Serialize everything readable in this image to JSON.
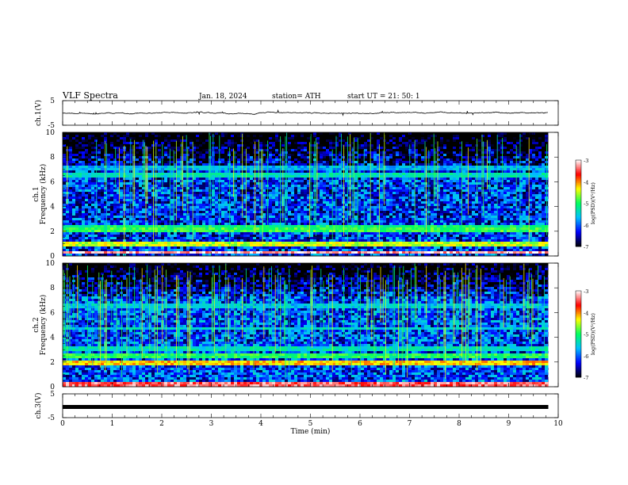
{
  "header": {
    "title": "VLF  Spectra",
    "date": "Jan. 18, 2024",
    "station": "station= ATH",
    "start": "start  UT  =    21: 50: 1"
  },
  "chart_data": [
    {
      "type": "line",
      "panel": "ch1-waveform",
      "ylabel": "ch.1(V)",
      "ylim": [
        -5,
        5
      ],
      "yticks": [
        "5",
        "-5"
      ],
      "xlim": [
        0,
        10
      ],
      "trace_level": 0.0,
      "trace_extent_min": 9.8
    },
    {
      "type": "heatmap",
      "panel": "ch1-spectrogram",
      "ylabel_channel": "ch.1",
      "ylabel": "Frequency  (kHz)",
      "ylim": [
        0,
        10
      ],
      "yticks": [
        "0",
        "2",
        "4",
        "6",
        "8",
        "10"
      ],
      "xlim": [
        0,
        10
      ],
      "data_extent_min": 9.8,
      "colorbar": {
        "label": "log(PSD)(V²/Hz)",
        "ticks": [
          "-3",
          "-4",
          "-5",
          "-6",
          "-7"
        ],
        "range": [
          -7,
          -3
        ]
      },
      "bands": [
        {
          "kHz": 0.3,
          "level": -3.2
        },
        {
          "kHz": 0.9,
          "level": -4.5
        },
        {
          "kHz": 2.1,
          "level": -4.9
        },
        {
          "kHz": 2.3,
          "level": -5.1
        },
        {
          "kHz": 4.4,
          "level": -6.9
        },
        {
          "kHz": 6.6,
          "level": -5.4
        },
        {
          "kHz": 7.1,
          "level": -5.7
        }
      ],
      "background_level": -6.2
    },
    {
      "type": "heatmap",
      "panel": "ch2-spectrogram",
      "ylabel_channel": "ch.2",
      "ylabel": "Frequency  (kHz)",
      "ylim": [
        0,
        10
      ],
      "yticks": [
        "0",
        "2",
        "4",
        "6",
        "8",
        "10"
      ],
      "xlim": [
        0,
        10
      ],
      "data_extent_min": 9.8,
      "colorbar": {
        "label": "log(PSD)(V²/Hz)",
        "ticks": [
          "-3",
          "-4",
          "-5",
          "-6",
          "-7"
        ],
        "range": [
          -7,
          -3
        ]
      },
      "bands": [
        {
          "kHz": 0.2,
          "level": -3.4
        },
        {
          "kHz": 1.9,
          "level": -4.2
        },
        {
          "kHz": 2.5,
          "level": -5.0
        },
        {
          "kHz": 3.0,
          "level": -5.4
        },
        {
          "kHz": 4.7,
          "level": -5.5
        },
        {
          "kHz": 6.6,
          "level": -5.6
        }
      ],
      "background_level": -6.1
    },
    {
      "type": "line",
      "panel": "ch3-waveform",
      "ylabel": "ch.3(V)",
      "ylim": [
        -5,
        5
      ],
      "yticks": [
        "5",
        "-5"
      ],
      "xlim": [
        0,
        10
      ],
      "xlabel": "Time  (min)",
      "xticks": [
        "0",
        "1",
        "2",
        "3",
        "4",
        "5",
        "6",
        "7",
        "8",
        "9",
        "10"
      ],
      "trace_level": -0.5,
      "trace_extent_min": 9.8
    }
  ],
  "colors": {
    "frame": "#000000",
    "colormap": [
      "#000000",
      "#0000ff",
      "#00c0ff",
      "#00ff60",
      "#ffff00",
      "#ff0000",
      "#ffffff"
    ]
  }
}
